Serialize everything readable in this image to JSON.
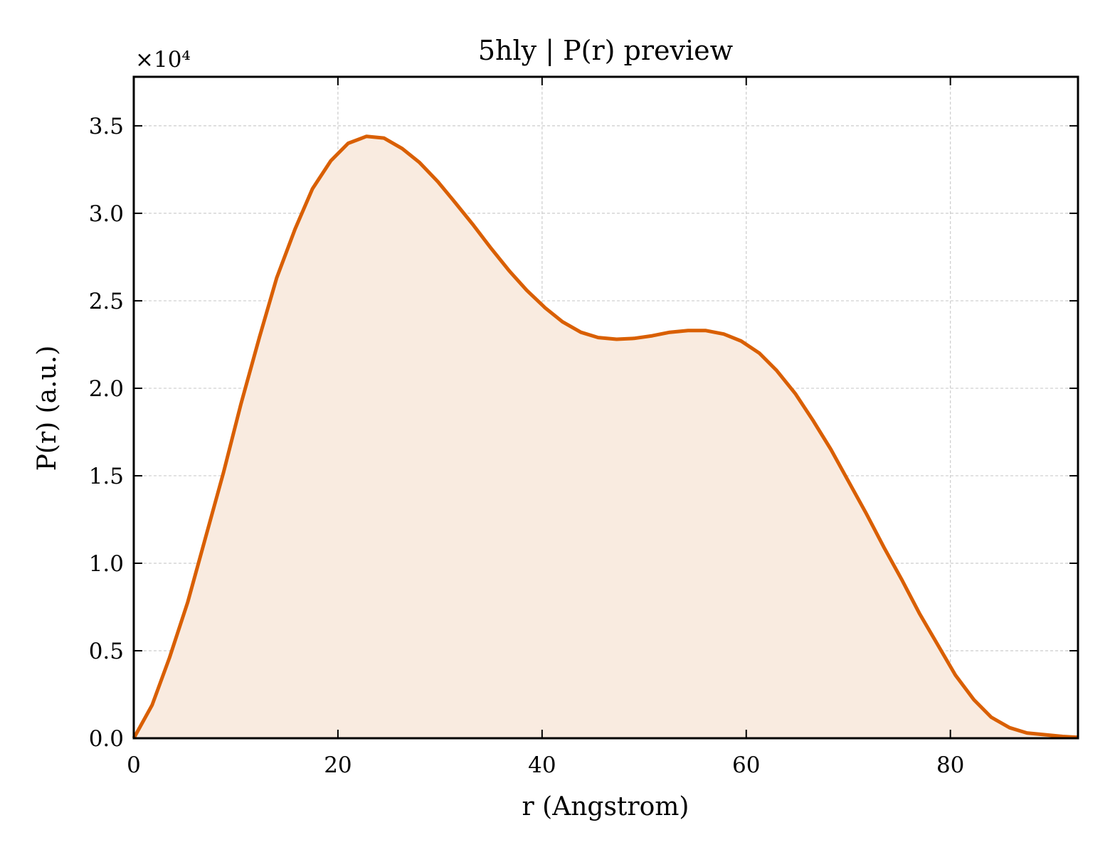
{
  "chart_data": {
    "type": "area",
    "title": "5hly | P(r) preview",
    "xlabel": "r (Angstrom)",
    "ylabel": "P(r) (a.u.)",
    "y_offset_label": "×10⁴",
    "y_scale": 10000,
    "xlim": [
      0,
      92.5
    ],
    "ylim": [
      0,
      3.78
    ],
    "x_ticks": [
      0,
      20,
      40,
      60,
      80
    ],
    "y_ticks": [
      0.0,
      0.5,
      1.0,
      1.5,
      2.0,
      2.5,
      3.0,
      3.5
    ],
    "x_tick_labels": [
      "0",
      "20",
      "40",
      "60",
      "80"
    ],
    "y_tick_labels": [
      "0.0",
      "0.5",
      "1.0",
      "1.5",
      "2.0",
      "2.5",
      "3.0",
      "3.5"
    ],
    "grid": true,
    "legend": "none",
    "line_color": "#d95f02",
    "fill_color": "#f9ebe0",
    "series": [
      {
        "x": [
          0,
          1.8,
          3.5,
          5.3,
          7.0,
          8.8,
          10.5,
          12.3,
          14.0,
          15.8,
          17.5,
          19.3,
          21.0,
          22.8,
          24.5,
          26.3,
          28.0,
          29.8,
          31.5,
          33.3,
          35.0,
          36.8,
          38.5,
          40.3,
          42.0,
          43.8,
          45.5,
          47.3,
          49.0,
          50.8,
          52.5,
          54.3,
          56.0,
          57.8,
          59.5,
          61.3,
          63.0,
          64.8,
          66.5,
          68.3,
          70.0,
          71.8,
          73.5,
          75.3,
          77.0,
          78.8,
          80.5,
          82.3,
          84.0,
          85.8,
          87.5,
          89.3,
          91.0,
          92.5
        ],
        "values": [
          0.0,
          0.19,
          0.46,
          0.78,
          1.14,
          1.52,
          1.91,
          2.29,
          2.63,
          2.91,
          3.14,
          3.3,
          3.4,
          3.44,
          3.43,
          3.37,
          3.29,
          3.18,
          3.06,
          2.93,
          2.8,
          2.67,
          2.56,
          2.46,
          2.38,
          2.32,
          2.29,
          2.28,
          2.285,
          2.3,
          2.32,
          2.33,
          2.33,
          2.31,
          2.27,
          2.2,
          2.1,
          1.97,
          1.82,
          1.65,
          1.47,
          1.28,
          1.09,
          0.9,
          0.71,
          0.53,
          0.36,
          0.22,
          0.12,
          0.06,
          0.03,
          0.02,
          0.01,
          0.005
        ]
      }
    ]
  }
}
